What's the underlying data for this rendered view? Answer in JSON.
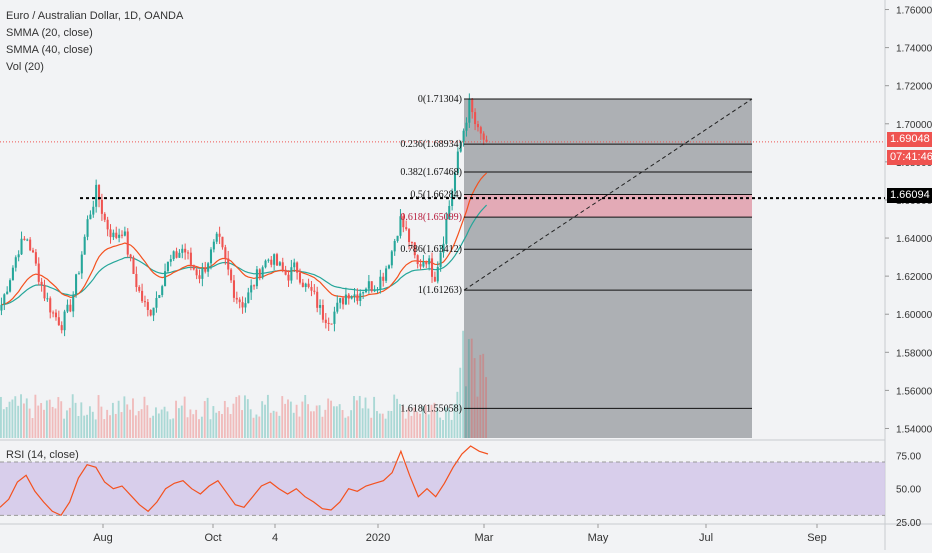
{
  "legend": {
    "title": "Euro / Australian Dollar, 1D, OANDA",
    "smma20": "SMMA (20, close)",
    "smma40": "SMMA (40, close)",
    "vol": "Vol (20)"
  },
  "rsi_legend": "RSI (14, close)",
  "price_tags": {
    "last_price": "1.69048",
    "countdown": "07:41:46",
    "line_price": "1.66094"
  },
  "colors": {
    "up": "#26a69a",
    "down": "#ef5350",
    "smma20": "#f4511e",
    "smma40": "#26a69a",
    "rsi_line": "#f4511e",
    "rsi_band": "#d1c4e9",
    "fib_box": "#a5a8ad",
    "fib_highlight": "#f0a9b7"
  },
  "chart_data": [
    {
      "type": "candlestick",
      "title": "Euro / Australian Dollar, 1D, OANDA",
      "x_ticks": [
        "Aug",
        "Oct",
        "4",
        "2020",
        "Mar",
        "May",
        "Jul",
        "Sep"
      ],
      "y_ticks": [
        "1.76000",
        "1.74000",
        "1.72000",
        "1.70000",
        "1.68000",
        "1.66000",
        "1.64000",
        "1.62000",
        "1.60000",
        "1.58000",
        "1.56000",
        "1.54000"
      ],
      "ylim": [
        1.535,
        1.765
      ],
      "horizontal_line": 1.66094,
      "last_price": 1.69048,
      "fib_retracement": [
        {
          "label": "0(1.71304)",
          "level": 1.71304
        },
        {
          "label": "0.236(1.68934)",
          "level": 1.68934
        },
        {
          "label": "0.382(1.67468)",
          "level": 1.67468
        },
        {
          "label": "0.5(1.66284)",
          "level": 1.66284
        },
        {
          "label": "0.618(1.65099)",
          "level": 1.65099
        },
        {
          "label": "0.786(1.63412)",
          "level": 1.63412
        },
        {
          "label": "1(1.61263)",
          "level": 1.61263
        },
        {
          "label": "1.618(1.55058)",
          "level": 1.55058
        }
      ],
      "close_path": [
        1.605,
        1.62,
        1.635,
        1.64,
        1.625,
        1.61,
        1.6,
        1.595,
        1.605,
        1.625,
        1.65,
        1.665,
        1.648,
        1.64,
        1.645,
        1.625,
        1.61,
        1.6,
        1.61,
        1.625,
        1.63,
        1.635,
        1.625,
        1.62,
        1.63,
        1.64,
        1.625,
        1.61,
        1.605,
        1.615,
        1.625,
        1.63,
        1.625,
        1.62,
        1.625,
        1.615,
        1.61,
        1.6,
        1.598,
        1.605,
        1.612,
        1.61,
        1.615,
        1.615,
        1.62,
        1.632,
        1.65,
        1.64,
        1.625,
        1.63,
        1.62,
        1.64,
        1.665,
        1.69,
        1.71,
        1.695,
        1.69048
      ]
    },
    {
      "type": "line",
      "title": "RSI (14, close)",
      "y_ticks": [
        "75.00",
        "50.00",
        "25.00"
      ],
      "ylim": [
        25,
        85
      ],
      "band": [
        30,
        70
      ],
      "values": [
        36,
        42,
        55,
        60,
        48,
        40,
        33,
        30,
        40,
        58,
        68,
        66,
        55,
        50,
        52,
        45,
        38,
        33,
        40,
        50,
        54,
        56,
        50,
        46,
        52,
        56,
        47,
        38,
        36,
        44,
        52,
        55,
        50,
        46,
        50,
        44,
        40,
        35,
        34,
        40,
        50,
        48,
        52,
        54,
        56,
        62,
        78,
        60,
        44,
        50,
        44,
        54,
        66,
        76,
        82,
        78,
        76
      ]
    }
  ]
}
